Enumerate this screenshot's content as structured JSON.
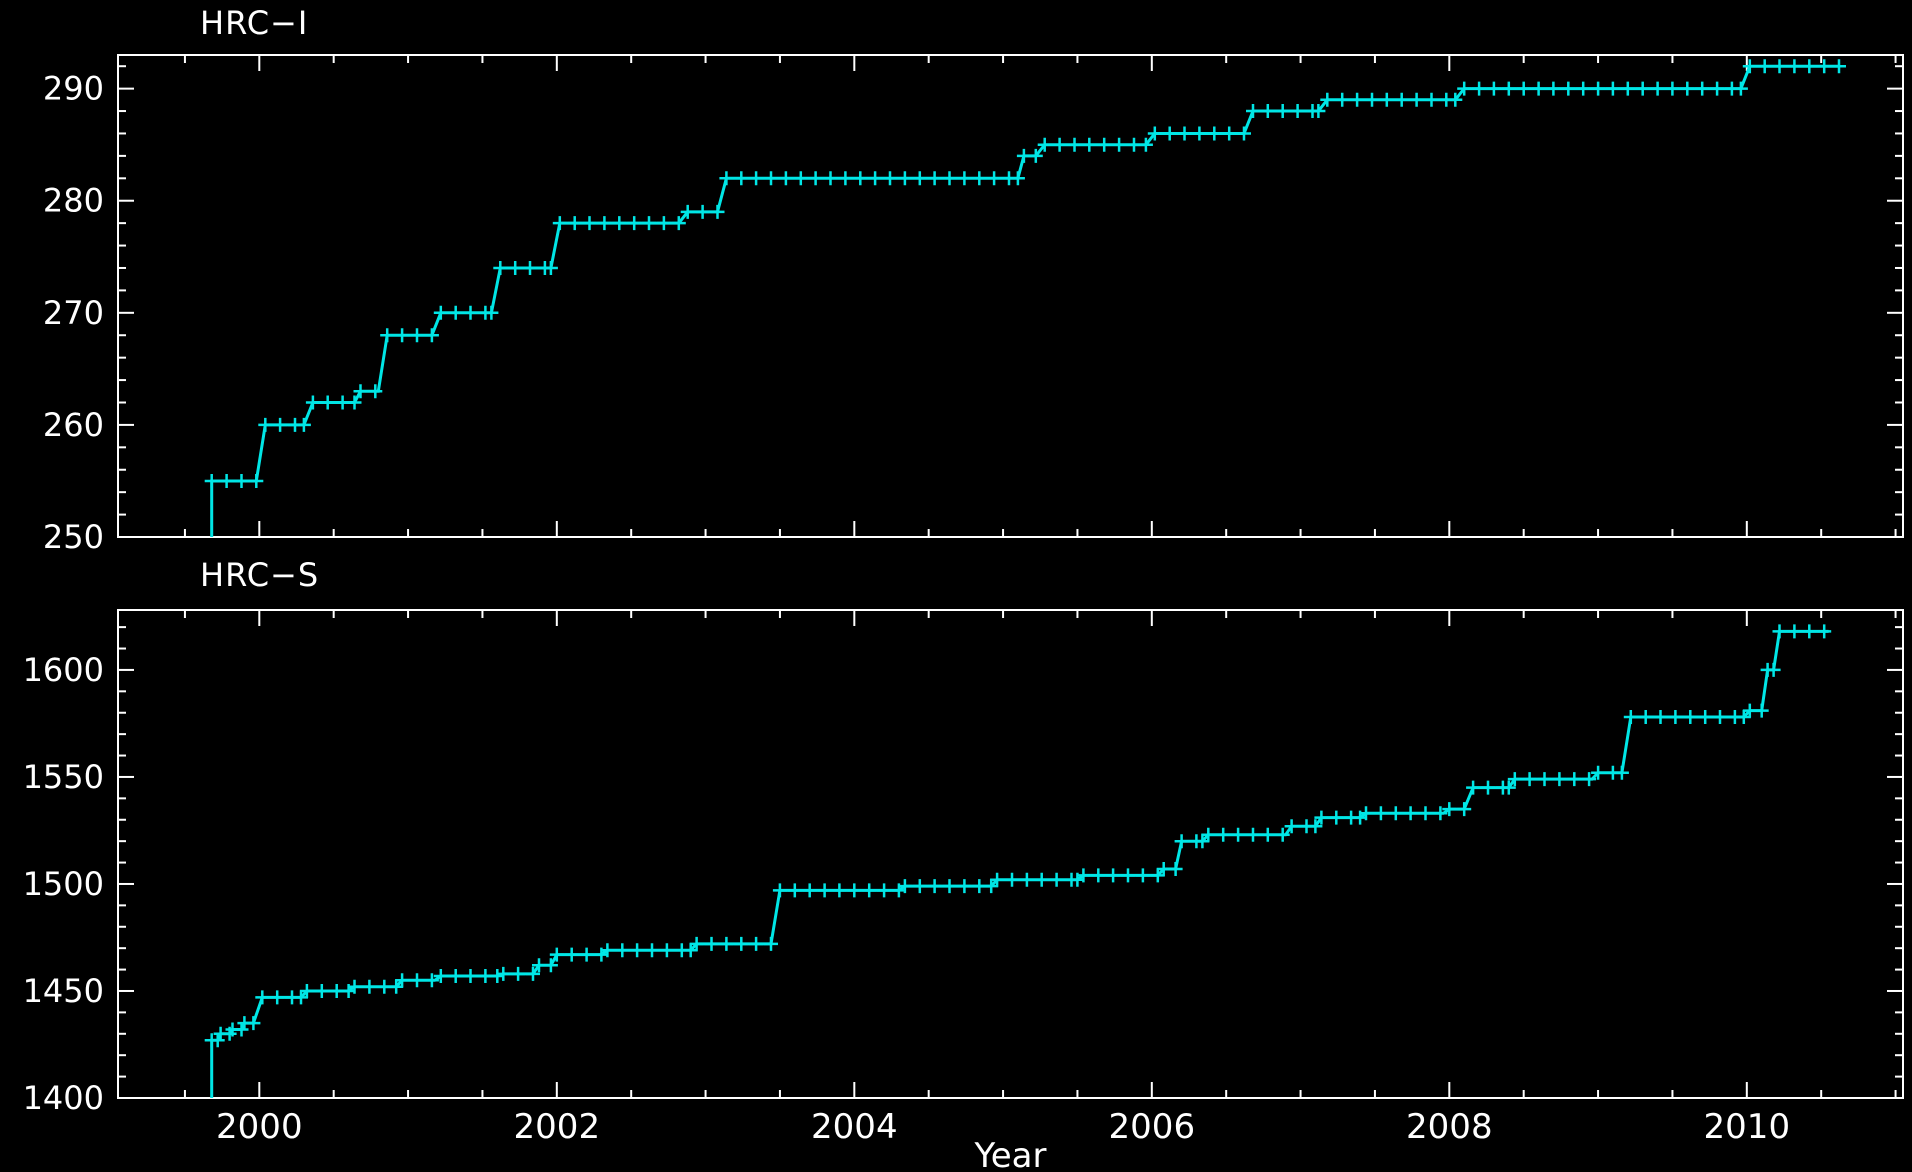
{
  "page": {
    "background_color": "#000000",
    "axis_color": "#ffffff",
    "accent_color": "#00e6e6",
    "xlabel": "Year"
  },
  "chart_data": [
    {
      "type": "line",
      "title": "HRC−I",
      "xlabel": "",
      "ylabel": "",
      "legend": "none",
      "grid": false,
      "marker": "plus",
      "xlim": [
        1999.05,
        2011.05
      ],
      "ylim": [
        250,
        293
      ],
      "x_major_ticks": [
        2000,
        2002,
        2004,
        2006,
        2008,
        2010
      ],
      "x_minor_step": 0.5,
      "y_major_ticks": [
        250,
        260,
        270,
        280,
        290
      ],
      "y_minor_step": 2,
      "show_x_labels": false,
      "start": {
        "x": 1999.68,
        "y": 250
      },
      "segments": [
        [
          1999.68,
          1999.98,
          255
        ],
        [
          2000.04,
          2000.3,
          260
        ],
        [
          2000.36,
          2000.64,
          262
        ],
        [
          2000.68,
          2000.8,
          263
        ],
        [
          2000.86,
          2001.16,
          268
        ],
        [
          2001.22,
          2001.56,
          270
        ],
        [
          2001.62,
          2001.96,
          274
        ],
        [
          2002.02,
          2002.82,
          278
        ],
        [
          2002.88,
          2003.08,
          279
        ],
        [
          2003.14,
          2005.1,
          282
        ],
        [
          2005.14,
          2005.22,
          284
        ],
        [
          2005.28,
          2005.96,
          285
        ],
        [
          2006.02,
          2006.62,
          286
        ],
        [
          2006.68,
          2007.12,
          288
        ],
        [
          2007.18,
          2008.04,
          289
        ],
        [
          2008.1,
          2009.96,
          290
        ],
        [
          2010.02,
          2010.62,
          292
        ]
      ]
    },
    {
      "type": "line",
      "title": "HRC−S",
      "xlabel": "Year",
      "ylabel": "",
      "legend": "none",
      "grid": false,
      "marker": "plus",
      "xlim": [
        1999.05,
        2011.05
      ],
      "ylim": [
        1400,
        1628
      ],
      "x_major_ticks": [
        2000,
        2002,
        2004,
        2006,
        2008,
        2010
      ],
      "x_minor_step": 0.5,
      "y_major_ticks": [
        1400,
        1450,
        1500,
        1550,
        1600
      ],
      "y_minor_step": 10,
      "show_x_labels": true,
      "start": {
        "x": 1999.68,
        "y": 1400
      },
      "segments": [
        [
          1999.68,
          1999.72,
          1427
        ],
        [
          1999.74,
          1999.8,
          1430
        ],
        [
          1999.82,
          1999.88,
          1432
        ],
        [
          1999.9,
          1999.96,
          1435
        ],
        [
          2000.02,
          2000.28,
          1447
        ],
        [
          2000.32,
          2000.6,
          1450
        ],
        [
          2000.64,
          2000.92,
          1452
        ],
        [
          2000.96,
          2001.18,
          1455
        ],
        [
          2001.22,
          2001.6,
          1457
        ],
        [
          2001.64,
          2001.84,
          1458
        ],
        [
          2001.88,
          2001.96,
          1462
        ],
        [
          2002.0,
          2002.3,
          1467
        ],
        [
          2002.34,
          2002.9,
          1469
        ],
        [
          2002.94,
          2003.44,
          1472
        ],
        [
          2003.5,
          2004.3,
          1497
        ],
        [
          2004.34,
          2004.92,
          1499
        ],
        [
          2004.96,
          2005.5,
          1502
        ],
        [
          2005.54,
          2006.04,
          1504
        ],
        [
          2006.08,
          2006.16,
          1507
        ],
        [
          2006.2,
          2006.34,
          1520
        ],
        [
          2006.38,
          2006.9,
          1523
        ],
        [
          2006.94,
          2007.1,
          1527
        ],
        [
          2007.14,
          2007.4,
          1531
        ],
        [
          2007.44,
          2007.96,
          1533
        ],
        [
          2008.0,
          2008.1,
          1535
        ],
        [
          2008.16,
          2008.4,
          1545
        ],
        [
          2008.44,
          2008.96,
          1549
        ],
        [
          2009.0,
          2009.16,
          1552
        ],
        [
          2009.22,
          2009.98,
          1578
        ],
        [
          2010.02,
          2010.1,
          1581
        ],
        [
          2010.14,
          2010.18,
          1600
        ],
        [
          2010.22,
          2010.55,
          1618
        ]
      ]
    }
  ]
}
